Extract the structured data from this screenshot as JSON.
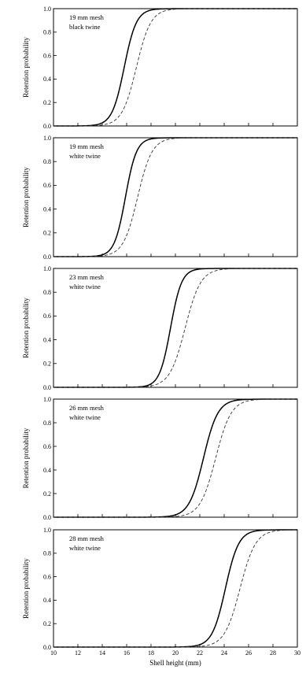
{
  "chart_data": [
    {
      "type": "line",
      "label_lines": [
        "19 mm mesh",
        "black twine"
      ],
      "ylabel": "Retention probability",
      "xlim": [
        10,
        30
      ],
      "ylim": [
        0,
        1
      ],
      "yticks": [
        "0.0",
        "0.2",
        "0.4",
        "0.6",
        "0.8",
        "1.0"
      ],
      "series": [
        {
          "style": "solid",
          "l50": 15.8,
          "sr": 1.1
        },
        {
          "style": "dashed",
          "l50": 16.8,
          "sr": 1.3
        }
      ]
    },
    {
      "type": "line",
      "label_lines": [
        "19 mm mesh",
        "white twine"
      ],
      "ylabel": "Retention probability",
      "xlim": [
        10,
        30
      ],
      "ylim": [
        0,
        1
      ],
      "yticks": [
        "0.0",
        "0.2",
        "0.4",
        "0.6",
        "0.8",
        "1.0"
      ],
      "series": [
        {
          "style": "solid",
          "l50": 15.9,
          "sr": 1.0
        },
        {
          "style": "dashed",
          "l50": 16.9,
          "sr": 1.3
        }
      ]
    },
    {
      "type": "line",
      "label_lines": [
        "23 mm mesh",
        "white twine"
      ],
      "ylabel": "Retention probability",
      "xlim": [
        10,
        30
      ],
      "ylim": [
        0,
        1
      ],
      "yticks": [
        "0.0",
        "0.2",
        "0.4",
        "0.6",
        "0.8",
        "1.0"
      ],
      "series": [
        {
          "style": "solid",
          "l50": 19.6,
          "sr": 1.0
        },
        {
          "style": "dashed",
          "l50": 20.8,
          "sr": 1.4
        }
      ]
    },
    {
      "type": "line",
      "label_lines": [
        "26 mm mesh",
        "white twine"
      ],
      "ylabel": "Retention probability",
      "xlim": [
        10,
        30
      ],
      "ylim": [
        0,
        1
      ],
      "yticks": [
        "0.0",
        "0.2",
        "0.4",
        "0.6",
        "0.8",
        "1.0"
      ],
      "series": [
        {
          "style": "solid",
          "l50": 22.3,
          "sr": 1.3
        },
        {
          "style": "dashed",
          "l50": 23.3,
          "sr": 1.4
        }
      ]
    },
    {
      "type": "line",
      "label_lines": [
        "28 mm mesh",
        "white twine"
      ],
      "ylabel": "Retention probability",
      "xlabel": "Shell height (mm)",
      "xlim": [
        10,
        30
      ],
      "ylim": [
        0,
        1
      ],
      "xticks": [
        "10",
        "12",
        "14",
        "16",
        "18",
        "20",
        "22",
        "24",
        "26",
        "28",
        "30"
      ],
      "yticks": [
        "0.0",
        "0.2",
        "0.4",
        "0.6",
        "0.8",
        "1.0"
      ],
      "series": [
        {
          "style": "solid",
          "l50": 24.1,
          "sr": 1.2
        },
        {
          "style": "dashed",
          "l50": 25.3,
          "sr": 1.4
        }
      ]
    }
  ]
}
